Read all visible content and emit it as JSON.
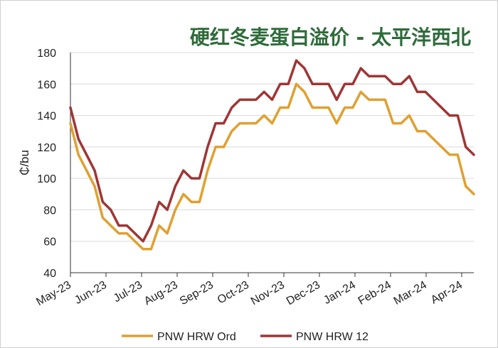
{
  "chart_data": {
    "type": "line",
    "title": "硬红冬麦蛋白溢价 - 太平洋西北",
    "ylabel": "₵/bu",
    "xlabel": "",
    "ylim": [
      40,
      180
    ],
    "yticks": [
      40,
      60,
      80,
      100,
      120,
      140,
      160,
      180
    ],
    "month_labels": [
      "May-23",
      "Jun-23",
      "Jul-23",
      "Aug-23",
      "Sep-23",
      "Oct-23",
      "Nov-23",
      "Dec-23",
      "Jan-24",
      "Feb-24",
      "Mar-24",
      "Apr-24"
    ],
    "grid": "horizontal",
    "legend_position": "bottom",
    "colors": {
      "title": "#2e6b3a",
      "grid": "#d9d9d9",
      "axis": "#333333"
    },
    "series": [
      {
        "name": "PNW HRW Ord",
        "color": "#e0a030",
        "values": [
          135,
          115,
          105,
          95,
          75,
          70,
          65,
          65,
          60,
          55,
          55,
          70,
          65,
          80,
          90,
          85,
          85,
          105,
          120,
          120,
          130,
          135,
          135,
          135,
          140,
          135,
          145,
          145,
          160,
          155,
          145,
          145,
          145,
          135,
          145,
          145,
          155,
          150,
          150,
          150,
          135,
          135,
          140,
          130,
          130,
          125,
          120,
          115,
          115,
          95,
          90
        ]
      },
      {
        "name": "PNW HRW 12",
        "color": "#a03535",
        "values": [
          145,
          125,
          115,
          105,
          85,
          80,
          70,
          70,
          65,
          60,
          70,
          85,
          80,
          95,
          105,
          100,
          100,
          120,
          135,
          135,
          145,
          150,
          150,
          150,
          155,
          150,
          160,
          160,
          175,
          170,
          160,
          160,
          160,
          150,
          160,
          160,
          170,
          165,
          165,
          165,
          160,
          160,
          165,
          155,
          155,
          150,
          145,
          140,
          140,
          120,
          115
        ]
      }
    ]
  }
}
